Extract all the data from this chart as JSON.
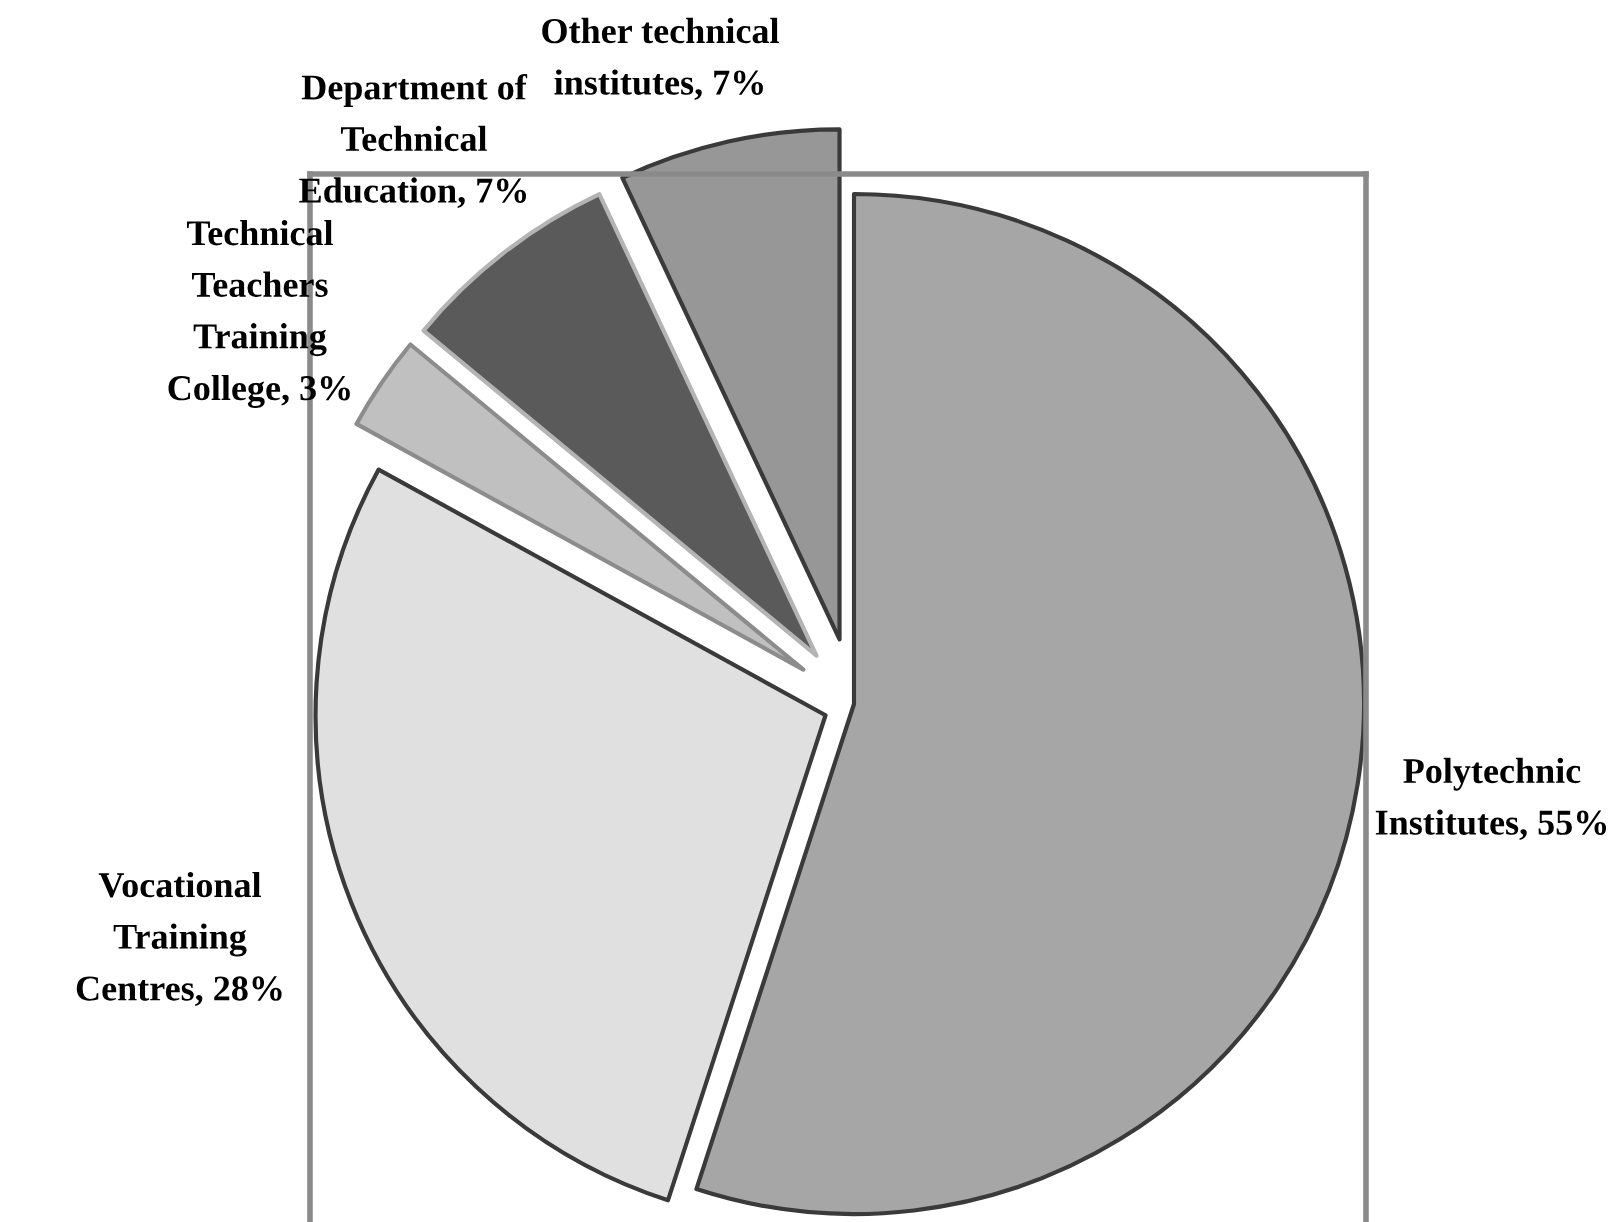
{
  "chart_data": {
    "type": "pie",
    "categories": [
      "Polytechnic Institutes",
      "Vocational Training Centres",
      "Technical Teachers Training College",
      "Department of Technical Education",
      "Other technical institutes"
    ],
    "values": [
      55,
      28,
      3,
      7,
      7
    ],
    "colors": [
      "#a6a6a6",
      "#e0e0e0",
      "#c0c0c0",
      "#5a5a5a",
      "#979797"
    ],
    "value_labels": [
      "55%",
      "28%",
      "3%",
      "7%",
      "7%"
    ]
  }
}
